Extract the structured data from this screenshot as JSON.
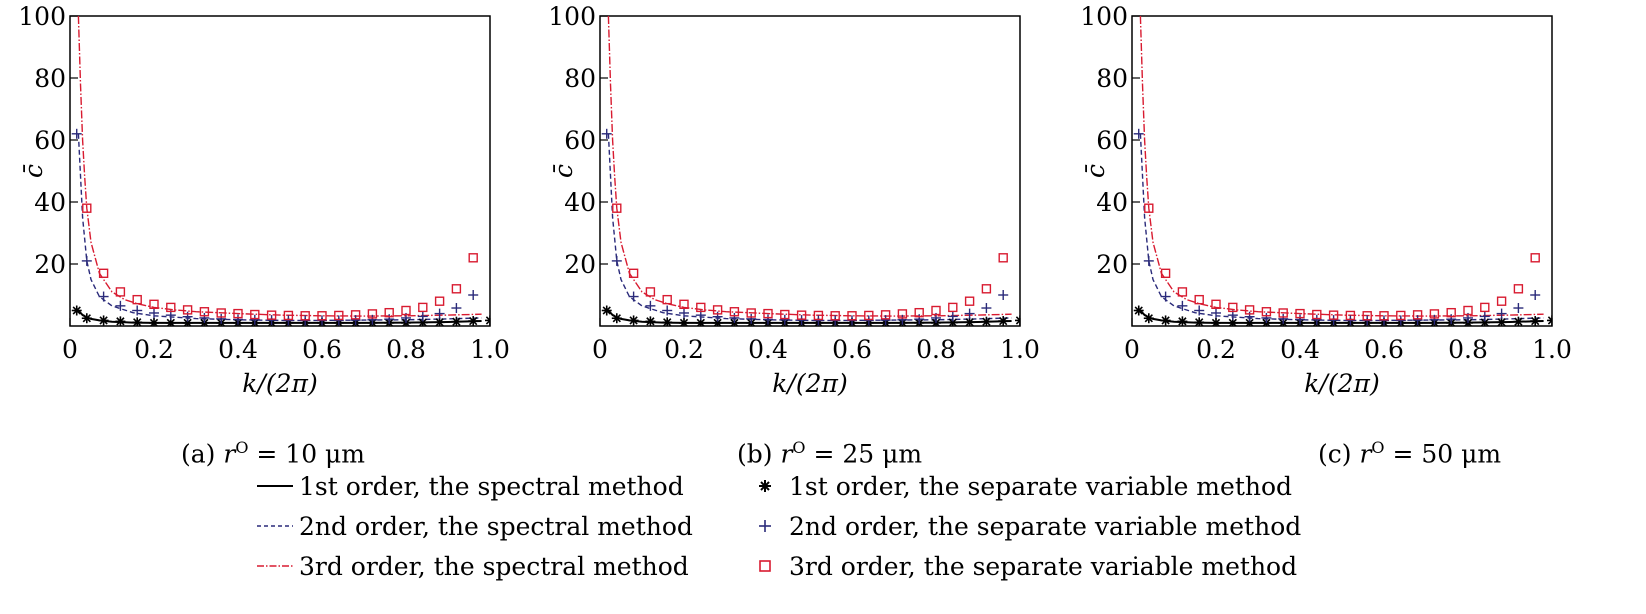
{
  "chart_data": [
    {
      "type": "line",
      "panel": "(a)",
      "caption_prefix": "(a)",
      "caption_var": "r",
      "caption_sup": "O",
      "caption_value": "= 10 μm",
      "xlabel": "k/(2π)",
      "ylabel": "c̄",
      "xlim": [
        0,
        1.0
      ],
      "ylim": [
        0,
        100
      ],
      "xticks": [
        "0",
        "0.2",
        "0.4",
        "0.6",
        "0.8",
        "1.0"
      ],
      "yticks": [
        "20",
        "40",
        "60",
        "80",
        "100"
      ],
      "series": [
        {
          "name": "1st order, the spectral method",
          "style": "solid",
          "x": [
            0.02,
            0.03,
            0.04,
            0.05,
            0.07,
            0.1,
            0.15,
            0.2,
            0.3,
            0.4,
            0.5,
            0.6,
            0.7,
            0.8,
            0.9,
            0.98
          ],
          "y": [
            5,
            3.5,
            2.8,
            2.3,
            1.8,
            1.4,
            1.1,
            1.0,
            1.0,
            1.0,
            1.0,
            1.0,
            1.0,
            1.1,
            1.3,
            1.6
          ]
        },
        {
          "name": "2nd order, the spectral method",
          "style": "dashed",
          "x": [
            0.02,
            0.03,
            0.04,
            0.05,
            0.07,
            0.1,
            0.15,
            0.2,
            0.3,
            0.4,
            0.5,
            0.6,
            0.7,
            0.8,
            0.9,
            0.98
          ],
          "y": [
            62,
            35,
            21,
            15,
            9.5,
            6.5,
            4.3,
            3.3,
            2.4,
            2.0,
            1.8,
            1.8,
            1.9,
            2.0,
            2.3,
            2.6
          ]
        },
        {
          "name": "3rd order, the spectral method",
          "style": "dashdot",
          "x": [
            0.02,
            0.025,
            0.03,
            0.035,
            0.04,
            0.05,
            0.07,
            0.1,
            0.13,
            0.16,
            0.2,
            0.25,
            0.3,
            0.4,
            0.5,
            0.6,
            0.7,
            0.8,
            0.9,
            0.98
          ],
          "y": [
            100,
            78,
            60,
            48,
            38,
            27,
            17,
            11,
            8.5,
            7.2,
            6,
            5.2,
            4.6,
            4.0,
            3.5,
            3.3,
            3.2,
            3.3,
            3.5,
            3.8
          ]
        },
        {
          "name": "1st order, the separate variable method",
          "marker": "asterisk",
          "x": [
            0.016,
            0.04,
            0.08,
            0.12,
            0.16,
            0.2,
            0.24,
            0.28,
            0.32,
            0.36,
            0.4,
            0.44,
            0.48,
            0.52,
            0.56,
            0.6,
            0.64,
            0.68,
            0.72,
            0.76,
            0.8,
            0.84,
            0.88,
            0.92,
            0.96,
            1.0
          ],
          "y": [
            5,
            2.5,
            1.8,
            1.5,
            1.2,
            1.0,
            1.0,
            1.0,
            1.0,
            1.0,
            1.0,
            1.0,
            1.0,
            1.0,
            1.0,
            1.0,
            1.0,
            1.0,
            1.0,
            1.0,
            1.0,
            1.1,
            1.2,
            1.4,
            1.6,
            1.8
          ]
        },
        {
          "name": "2nd order, the separate variable method",
          "marker": "plus",
          "x": [
            0.016,
            0.04,
            0.08,
            0.12,
            0.16,
            0.2,
            0.24,
            0.28,
            0.32,
            0.36,
            0.4,
            0.44,
            0.48,
            0.52,
            0.56,
            0.6,
            0.64,
            0.68,
            0.72,
            0.76,
            0.8,
            0.84,
            0.88,
            0.92,
            0.96
          ],
          "y": [
            62,
            21,
            9.5,
            6.5,
            5,
            4.2,
            3.5,
            3,
            2.6,
            2.3,
            2.1,
            2.0,
            1.9,
            1.8,
            1.8,
            1.8,
            1.8,
            1.9,
            2.0,
            2.2,
            2.6,
            3.1,
            4,
            5.8,
            10
          ]
        },
        {
          "name": "3rd order, the separate variable method",
          "marker": "square",
          "x": [
            0.04,
            0.08,
            0.12,
            0.16,
            0.2,
            0.24,
            0.28,
            0.32,
            0.36,
            0.4,
            0.44,
            0.48,
            0.52,
            0.56,
            0.6,
            0.64,
            0.68,
            0.72,
            0.76,
            0.8,
            0.84,
            0.88,
            0.92,
            0.96
          ],
          "y": [
            38,
            17,
            11,
            8.5,
            7,
            6,
            5.2,
            4.6,
            4.2,
            4.0,
            3.7,
            3.5,
            3.4,
            3.3,
            3.3,
            3.4,
            3.6,
            3.9,
            4.3,
            5,
            6,
            8,
            12,
            22
          ]
        }
      ]
    },
    {
      "type": "line",
      "panel": "(b)",
      "caption_prefix": "(b)",
      "caption_var": "r",
      "caption_sup": "O",
      "caption_value": "= 25 μm",
      "xlabel": "k/(2π)",
      "ylabel": "c̄",
      "xlim": [
        0,
        1.0
      ],
      "ylim": [
        0,
        100
      ],
      "xticks": [
        "0",
        "0.2",
        "0.4",
        "0.6",
        "0.8",
        "1.0"
      ],
      "yticks": [
        "20",
        "40",
        "60",
        "80",
        "100"
      ],
      "series": [
        {
          "name": "1st order, the spectral method",
          "style": "solid",
          "x": [
            0.02,
            0.03,
            0.04,
            0.05,
            0.07,
            0.1,
            0.15,
            0.2,
            0.3,
            0.4,
            0.5,
            0.6,
            0.7,
            0.8,
            0.9,
            0.98
          ],
          "y": [
            5,
            3.5,
            2.8,
            2.3,
            1.8,
            1.4,
            1.1,
            1.0,
            1.0,
            1.0,
            1.0,
            1.0,
            1.0,
            1.1,
            1.3,
            1.6
          ]
        },
        {
          "name": "2nd order, the spectral method",
          "style": "dashed",
          "x": [
            0.02,
            0.03,
            0.04,
            0.05,
            0.07,
            0.1,
            0.15,
            0.2,
            0.3,
            0.4,
            0.5,
            0.6,
            0.7,
            0.8,
            0.9,
            0.98
          ],
          "y": [
            62,
            35,
            21,
            15,
            9.5,
            6.5,
            4.3,
            3.3,
            2.4,
            2.0,
            1.8,
            1.8,
            1.9,
            2.0,
            2.3,
            2.6
          ]
        },
        {
          "name": "3rd order, the spectral method",
          "style": "dashdot",
          "x": [
            0.02,
            0.025,
            0.03,
            0.035,
            0.04,
            0.05,
            0.07,
            0.1,
            0.13,
            0.16,
            0.2,
            0.25,
            0.3,
            0.4,
            0.5,
            0.6,
            0.7,
            0.8,
            0.9,
            0.98
          ],
          "y": [
            100,
            78,
            60,
            48,
            38,
            27,
            17,
            11,
            8.5,
            7.2,
            6,
            5.2,
            4.6,
            4.0,
            3.5,
            3.3,
            3.2,
            3.3,
            3.5,
            3.8
          ]
        },
        {
          "name": "1st order, the separate variable method",
          "marker": "asterisk",
          "x": [
            0.016,
            0.04,
            0.08,
            0.12,
            0.16,
            0.2,
            0.24,
            0.28,
            0.32,
            0.36,
            0.4,
            0.44,
            0.48,
            0.52,
            0.56,
            0.6,
            0.64,
            0.68,
            0.72,
            0.76,
            0.8,
            0.84,
            0.88,
            0.92,
            0.96,
            1.0
          ],
          "y": [
            5,
            2.5,
            1.8,
            1.5,
            1.2,
            1.0,
            1.0,
            1.0,
            1.0,
            1.0,
            1.0,
            1.0,
            1.0,
            1.0,
            1.0,
            1.0,
            1.0,
            1.0,
            1.0,
            1.0,
            1.0,
            1.1,
            1.2,
            1.4,
            1.6,
            1.8
          ]
        },
        {
          "name": "2nd order, the separate variable method",
          "marker": "plus",
          "x": [
            0.016,
            0.04,
            0.08,
            0.12,
            0.16,
            0.2,
            0.24,
            0.28,
            0.32,
            0.36,
            0.4,
            0.44,
            0.48,
            0.52,
            0.56,
            0.6,
            0.64,
            0.68,
            0.72,
            0.76,
            0.8,
            0.84,
            0.88,
            0.92,
            0.96
          ],
          "y": [
            62,
            21,
            9.5,
            6.5,
            5,
            4.2,
            3.5,
            3,
            2.6,
            2.3,
            2.1,
            2.0,
            1.9,
            1.8,
            1.8,
            1.8,
            1.8,
            1.9,
            2.0,
            2.2,
            2.6,
            3.1,
            4,
            5.8,
            10
          ]
        },
        {
          "name": "3rd order, the separate variable method",
          "marker": "square",
          "x": [
            0.04,
            0.08,
            0.12,
            0.16,
            0.2,
            0.24,
            0.28,
            0.32,
            0.36,
            0.4,
            0.44,
            0.48,
            0.52,
            0.56,
            0.6,
            0.64,
            0.68,
            0.72,
            0.76,
            0.8,
            0.84,
            0.88,
            0.92,
            0.96
          ],
          "y": [
            38,
            17,
            11,
            8.5,
            7,
            6,
            5.2,
            4.6,
            4.2,
            4.0,
            3.7,
            3.5,
            3.4,
            3.3,
            3.3,
            3.4,
            3.6,
            3.9,
            4.3,
            5,
            6,
            8,
            12,
            22
          ]
        }
      ]
    },
    {
      "type": "line",
      "panel": "(c)",
      "caption_prefix": "(c)",
      "caption_var": "r",
      "caption_sup": "O",
      "caption_value": "= 50 μm",
      "xlabel": "k/(2π)",
      "ylabel": "c̄",
      "xlim": [
        0,
        1.0
      ],
      "ylim": [
        0,
        100
      ],
      "xticks": [
        "0",
        "0.2",
        "0.4",
        "0.6",
        "0.8",
        "1.0"
      ],
      "yticks": [
        "20",
        "40",
        "60",
        "80",
        "100"
      ],
      "series": [
        {
          "name": "1st order, the spectral method",
          "style": "solid",
          "x": [
            0.02,
            0.03,
            0.04,
            0.05,
            0.07,
            0.1,
            0.15,
            0.2,
            0.3,
            0.4,
            0.5,
            0.6,
            0.7,
            0.8,
            0.9,
            0.98
          ],
          "y": [
            5,
            3.5,
            2.8,
            2.3,
            1.8,
            1.4,
            1.1,
            1.0,
            1.0,
            1.0,
            1.0,
            1.0,
            1.0,
            1.1,
            1.3,
            1.6
          ]
        },
        {
          "name": "2nd order, the spectral method",
          "style": "dashed",
          "x": [
            0.02,
            0.03,
            0.04,
            0.05,
            0.07,
            0.1,
            0.15,
            0.2,
            0.3,
            0.4,
            0.5,
            0.6,
            0.7,
            0.8,
            0.9,
            0.98
          ],
          "y": [
            62,
            35,
            21,
            15,
            9.5,
            6.5,
            4.3,
            3.3,
            2.4,
            2.0,
            1.8,
            1.8,
            1.9,
            2.0,
            2.3,
            2.6
          ]
        },
        {
          "name": "3rd order, the spectral method",
          "style": "dashdot",
          "x": [
            0.02,
            0.025,
            0.03,
            0.035,
            0.04,
            0.05,
            0.07,
            0.1,
            0.13,
            0.16,
            0.2,
            0.25,
            0.3,
            0.4,
            0.5,
            0.6,
            0.7,
            0.8,
            0.9,
            0.98
          ],
          "y": [
            100,
            78,
            60,
            48,
            38,
            27,
            17,
            11,
            8.5,
            7.2,
            6,
            5.2,
            4.6,
            4.0,
            3.5,
            3.3,
            3.2,
            3.3,
            3.5,
            3.8
          ]
        },
        {
          "name": "1st order, the separate variable method",
          "marker": "asterisk",
          "x": [
            0.016,
            0.04,
            0.08,
            0.12,
            0.16,
            0.2,
            0.24,
            0.28,
            0.32,
            0.36,
            0.4,
            0.44,
            0.48,
            0.52,
            0.56,
            0.6,
            0.64,
            0.68,
            0.72,
            0.76,
            0.8,
            0.84,
            0.88,
            0.92,
            0.96,
            1.0
          ],
          "y": [
            5,
            2.5,
            1.8,
            1.5,
            1.2,
            1.0,
            1.0,
            1.0,
            1.0,
            1.0,
            1.0,
            1.0,
            1.0,
            1.0,
            1.0,
            1.0,
            1.0,
            1.0,
            1.0,
            1.0,
            1.0,
            1.1,
            1.2,
            1.4,
            1.6,
            1.8
          ]
        },
        {
          "name": "2nd order, the separate variable method",
          "marker": "plus",
          "x": [
            0.016,
            0.04,
            0.08,
            0.12,
            0.16,
            0.2,
            0.24,
            0.28,
            0.32,
            0.36,
            0.4,
            0.44,
            0.48,
            0.52,
            0.56,
            0.6,
            0.64,
            0.68,
            0.72,
            0.76,
            0.8,
            0.84,
            0.88,
            0.92,
            0.96
          ],
          "y": [
            62,
            21,
            9.5,
            6.5,
            5,
            4.2,
            3.5,
            3,
            2.6,
            2.3,
            2.1,
            2.0,
            1.9,
            1.8,
            1.8,
            1.8,
            1.8,
            1.9,
            2.0,
            2.2,
            2.6,
            3.1,
            4,
            5.8,
            10
          ]
        },
        {
          "name": "3rd order, the separate variable method",
          "marker": "square",
          "x": [
            0.04,
            0.08,
            0.12,
            0.16,
            0.2,
            0.24,
            0.28,
            0.32,
            0.36,
            0.4,
            0.44,
            0.48,
            0.52,
            0.56,
            0.6,
            0.64,
            0.68,
            0.72,
            0.76,
            0.8,
            0.84,
            0.88,
            0.92,
            0.96
          ],
          "y": [
            38,
            17,
            11,
            8.5,
            7,
            6,
            5.2,
            4.6,
            4.2,
            4.0,
            3.7,
            3.5,
            3.4,
            3.3,
            3.3,
            3.4,
            3.6,
            3.9,
            4.3,
            5,
            6,
            8,
            12,
            22
          ]
        }
      ]
    }
  ],
  "legend": [
    {
      "label": "1st order, the spectral method",
      "symbol": "solid"
    },
    {
      "label": "1st order, the separate variable method",
      "symbol": "asterisk"
    },
    {
      "label": "2nd order, the spectral method",
      "symbol": "dashed"
    },
    {
      "label": "2nd order, the separate variable method",
      "symbol": "plus"
    },
    {
      "label": "3rd order, the spectral method",
      "symbol": "dashdot"
    },
    {
      "label": "3rd order, the separate variable method",
      "symbol": "square"
    }
  ],
  "colors": {
    "first": "#000000",
    "second": "#2a2a7a",
    "third": "#d81b30"
  }
}
